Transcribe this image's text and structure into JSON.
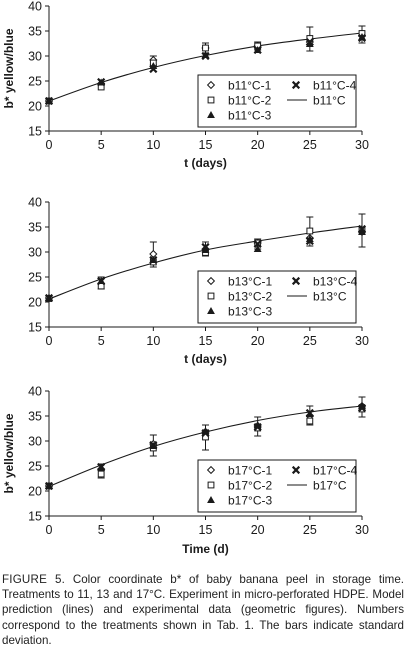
{
  "chart_data": [
    {
      "type": "scatter",
      "xlabel": "t (days)",
      "ylabel": "b* yellow/blue",
      "xlim": [
        0,
        30
      ],
      "ylim": [
        15,
        40
      ],
      "xticks": [
        0,
        5,
        10,
        15,
        20,
        25,
        30
      ],
      "yticks": [
        15,
        20,
        25,
        30,
        35,
        40
      ],
      "legend_position": "bottom-right",
      "series": [
        {
          "name": "b11°C-1",
          "marker": "diamond",
          "x": [
            0,
            5,
            10,
            15,
            20,
            25,
            30
          ],
          "y": [
            21.0,
            24.5,
            29.2,
            31.6,
            32.0,
            32.8,
            34.0
          ]
        },
        {
          "name": "b11°C-2",
          "marker": "square",
          "x": [
            0,
            5,
            10,
            15,
            20,
            25,
            30
          ],
          "y": [
            21.0,
            23.8,
            28.6,
            31.6,
            32.0,
            33.5,
            34.5
          ]
        },
        {
          "name": "b11°C-3",
          "marker": "triangle",
          "x": [
            0,
            5,
            10,
            15,
            20,
            25,
            30
          ],
          "y": [
            21.0,
            24.7,
            28.0,
            30.2,
            31.2,
            32.4,
            33.8
          ]
        },
        {
          "name": "b11°C-4",
          "marker": "x",
          "x": [
            0,
            5,
            10,
            15,
            20,
            25,
            30
          ],
          "y": [
            21.0,
            24.8,
            27.4,
            30.0,
            31.2,
            32.8,
            33.6
          ]
        },
        {
          "name": "b11°C",
          "marker": "line",
          "x": [
            0,
            5,
            10,
            15,
            20,
            25,
            30
          ],
          "y": [
            21.0,
            24.7,
            27.7,
            30.1,
            32.0,
            33.4,
            34.6
          ]
        }
      ],
      "error_bars": [
        {
          "x": 10,
          "low": 28.2,
          "high": 30.0
        },
        {
          "x": 15,
          "low": 30.6,
          "high": 32.6
        },
        {
          "x": 20,
          "low": 31.2,
          "high": 32.8
        },
        {
          "x": 25,
          "low": 31.0,
          "high": 35.8
        },
        {
          "x": 30,
          "low": 32.6,
          "high": 36.0
        }
      ]
    },
    {
      "type": "scatter",
      "xlabel": "t (days)",
      "ylabel": "",
      "xlim": [
        0,
        30
      ],
      "ylim": [
        15,
        40
      ],
      "xticks": [
        0,
        5,
        10,
        15,
        20,
        25,
        30
      ],
      "yticks": [
        15,
        20,
        25,
        30,
        35,
        40
      ],
      "legend_position": "bottom-right",
      "series": [
        {
          "name": "b13°C-1",
          "marker": "diamond",
          "x": [
            0,
            5,
            10,
            15,
            20,
            25,
            30
          ],
          "y": [
            20.8,
            23.6,
            29.6,
            30.6,
            31.8,
            32.8,
            34.0
          ]
        },
        {
          "name": "b13°C-2",
          "marker": "square",
          "x": [
            0,
            5,
            10,
            15,
            20,
            25,
            30
          ],
          "y": [
            20.7,
            23.2,
            28.0,
            29.9,
            31.8,
            34.2,
            34.4
          ]
        },
        {
          "name": "b13°C-3",
          "marker": "triangle",
          "x": [
            0,
            5,
            10,
            15,
            20,
            25,
            30
          ],
          "y": [
            20.8,
            24.2,
            28.4,
            30.4,
            30.6,
            32.6,
            34.0
          ]
        },
        {
          "name": "b13°C-4",
          "marker": "x",
          "x": [
            0,
            5,
            10,
            15,
            20,
            25,
            30
          ],
          "y": [
            20.8,
            24.2,
            28.4,
            31.0,
            31.6,
            32.2,
            34.6
          ]
        },
        {
          "name": "b13°C",
          "marker": "line",
          "x": [
            0,
            5,
            10,
            15,
            20,
            25,
            30
          ],
          "y": [
            20.6,
            24.6,
            27.8,
            30.4,
            32.2,
            33.8,
            35.2
          ]
        }
      ],
      "error_bars": [
        {
          "x": 5,
          "low": 22.6,
          "high": 25.0
        },
        {
          "x": 10,
          "low": 27.0,
          "high": 32.0
        },
        {
          "x": 15,
          "low": 29.2,
          "high": 32.0
        },
        {
          "x": 20,
          "low": 30.6,
          "high": 32.6
        },
        {
          "x": 25,
          "low": 31.2,
          "high": 37.0
        },
        {
          "x": 30,
          "low": 31.0,
          "high": 37.6
        }
      ]
    },
    {
      "type": "scatter",
      "xlabel": "Time (d)",
      "ylabel": "b* yellow/blue",
      "xlim": [
        0,
        30
      ],
      "ylim": [
        15,
        40
      ],
      "xticks": [
        0,
        5,
        10,
        15,
        20,
        25,
        30
      ],
      "yticks": [
        15,
        20,
        25,
        30,
        35,
        40
      ],
      "legend_position": "bottom-right",
      "series": [
        {
          "name": "b17°C-1",
          "marker": "diamond",
          "x": [
            0,
            5,
            10,
            15,
            20,
            25,
            30
          ],
          "y": [
            21.0,
            24.4,
            29.4,
            31.8,
            33.0,
            35.0,
            37.0
          ]
        },
        {
          "name": "b17°C-2",
          "marker": "square",
          "x": [
            0,
            5,
            10,
            15,
            20,
            25,
            30
          ],
          "y": [
            21.0,
            23.4,
            28.6,
            30.8,
            32.6,
            34.0,
            36.4
          ]
        },
        {
          "name": "b17°C-3",
          "marker": "triangle",
          "x": [
            0,
            5,
            10,
            15,
            20,
            25,
            30
          ],
          "y": [
            21.0,
            24.6,
            29.0,
            32.0,
            33.2,
            35.4,
            37.0
          ]
        },
        {
          "name": "b17°C-4",
          "marker": "x",
          "x": [
            0,
            5,
            10,
            15,
            20,
            25,
            30
          ],
          "y": [
            21.0,
            24.8,
            29.2,
            31.6,
            32.8,
            35.6,
            36.6
          ]
        },
        {
          "name": "b17°C",
          "marker": "line",
          "x": [
            0,
            5,
            10,
            15,
            20,
            25,
            30
          ],
          "y": [
            20.9,
            25.2,
            28.9,
            31.8,
            34.1,
            35.8,
            37.0
          ]
        }
      ],
      "error_bars": [
        {
          "x": 5,
          "low": 22.6,
          "high": 25.4
        },
        {
          "x": 10,
          "low": 27.0,
          "high": 31.2
        },
        {
          "x": 15,
          "low": 28.2,
          "high": 33.2
        },
        {
          "x": 20,
          "low": 31.0,
          "high": 34.8
        },
        {
          "x": 25,
          "low": 33.2,
          "high": 37.0
        },
        {
          "x": 30,
          "low": 34.8,
          "high": 38.8
        }
      ]
    }
  ],
  "caption": {
    "label": "Figure 5.",
    "text": " Color coordinate b* of baby banana peel in storage time. Treatments to 11, 13 and 17°C. Experiment in micro-perforated HDPE. Model prediction (lines) and experimental data (geometric figures). Numbers correspond to the treatments shown in Tab. 1. The bars indicate standard deviation."
  }
}
